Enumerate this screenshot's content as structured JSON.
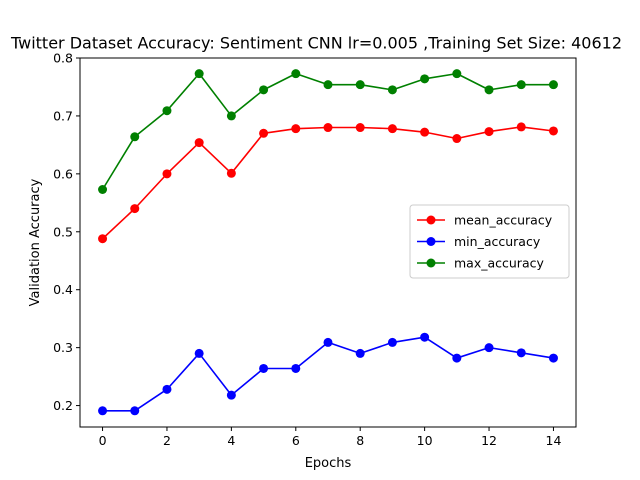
{
  "chart_data": {
    "type": "line",
    "title": "Twitter Dataset Accuracy: Sentiment CNN lr=0.005 ,Training Set Size: 40612",
    "xlabel": "Epochs",
    "ylabel": "Validation Accuracy",
    "x": [
      0,
      1,
      2,
      3,
      4,
      5,
      6,
      7,
      8,
      9,
      10,
      11,
      12,
      13,
      14
    ],
    "xlim": [
      -0.7,
      14.7
    ],
    "ylim": [
      0.163,
      0.8
    ],
    "xticks": [
      0,
      2,
      4,
      6,
      8,
      10,
      12,
      14
    ],
    "yticks": [
      0.2,
      0.3,
      0.4,
      0.5,
      0.6,
      0.7,
      0.8
    ],
    "ytick_labels": [
      "0.2",
      "0.3",
      "0.4",
      "0.5",
      "0.6",
      "0.7",
      "0.8"
    ],
    "grid": false,
    "legend_position": "center-right",
    "series": [
      {
        "name": "mean_accuracy",
        "color": "#ff0000",
        "values": [
          0.488,
          0.54,
          0.6,
          0.654,
          0.601,
          0.67,
          0.678,
          0.68,
          0.68,
          0.678,
          0.672,
          0.661,
          0.673,
          0.681,
          0.674
        ]
      },
      {
        "name": "min_accuracy",
        "color": "#0000ff",
        "values": [
          0.191,
          0.191,
          0.228,
          0.29,
          0.218,
          0.264,
          0.264,
          0.309,
          0.29,
          0.309,
          0.318,
          0.282,
          0.3,
          0.291,
          0.282
        ]
      },
      {
        "name": "max_accuracy",
        "color": "#008000",
        "values": [
          0.573,
          0.664,
          0.709,
          0.773,
          0.7,
          0.745,
          0.773,
          0.754,
          0.754,
          0.745,
          0.764,
          0.773,
          0.745,
          0.754,
          0.754
        ]
      }
    ]
  }
}
